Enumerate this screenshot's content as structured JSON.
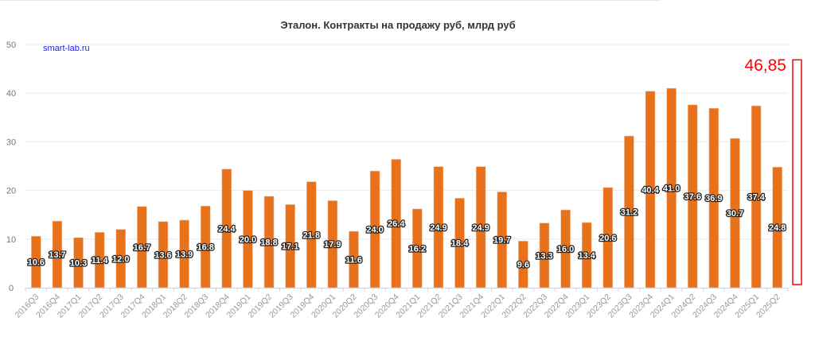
{
  "chart_data": {
    "type": "bar",
    "title": "Эталон. Контракты на продажу руб, млрд руб",
    "watermark": "smart-lab.ru",
    "xlabel": "",
    "ylabel": "",
    "ylim": [
      0,
      50
    ],
    "yticks": [
      "0",
      "10",
      "20",
      "30",
      "40",
      "50"
    ],
    "grid": true,
    "bar_color": "#e8711c",
    "categories": [
      "2016Q3",
      "2016Q4",
      "2017Q1",
      "2017Q2",
      "2017Q3",
      "2017Q4",
      "2018Q1",
      "2018Q2",
      "2018Q3",
      "2018Q4",
      "2019Q1",
      "2019Q2",
      "2019Q3",
      "2019Q4",
      "2020Q1",
      "2020Q2",
      "2020Q3",
      "2020Q4",
      "2021Q1",
      "2021Q2",
      "2021Q3",
      "2021Q4",
      "2022Q1",
      "2022Q2",
      "2022Q3",
      "2022Q4",
      "2023Q1",
      "2023Q2",
      "2023Q3",
      "2023Q4",
      "2024Q1",
      "2024Q2",
      "2024Q3",
      "2024Q4",
      "2025Q1",
      "2025Q2"
    ],
    "values": [
      10.6,
      13.7,
      10.3,
      11.4,
      12.0,
      16.7,
      13.6,
      13.9,
      16.8,
      24.4,
      20.0,
      18.8,
      17.1,
      21.8,
      17.9,
      11.6,
      24.0,
      26.4,
      16.2,
      24.9,
      18.4,
      24.9,
      19.7,
      9.6,
      13.3,
      16.0,
      13.4,
      20.6,
      31.2,
      40.4,
      41.0,
      37.6,
      36.9,
      30.7,
      37.4,
      24.8
    ],
    "data_labels": [
      "10.6",
      "13.7",
      "10.3",
      "11.4",
      "12.0",
      "16.7",
      "13.6",
      "13.9",
      "16.8",
      "24.4",
      "20.0",
      "18.8",
      "17.1",
      "21.8",
      "17.9",
      "11.6",
      "24.0",
      "26.4",
      "16.2",
      "24.9",
      "18.4",
      "24.9",
      "19.7",
      "9.6",
      "13.3",
      "16.0",
      "13.4",
      "20.6",
      "31.2",
      "40.4",
      "41.0",
      "37.6",
      "36.9",
      "30.7",
      "37.4",
      "24.8"
    ],
    "annotation": {
      "text": "46,85",
      "value": 46.85,
      "color": "#ff0000"
    }
  }
}
